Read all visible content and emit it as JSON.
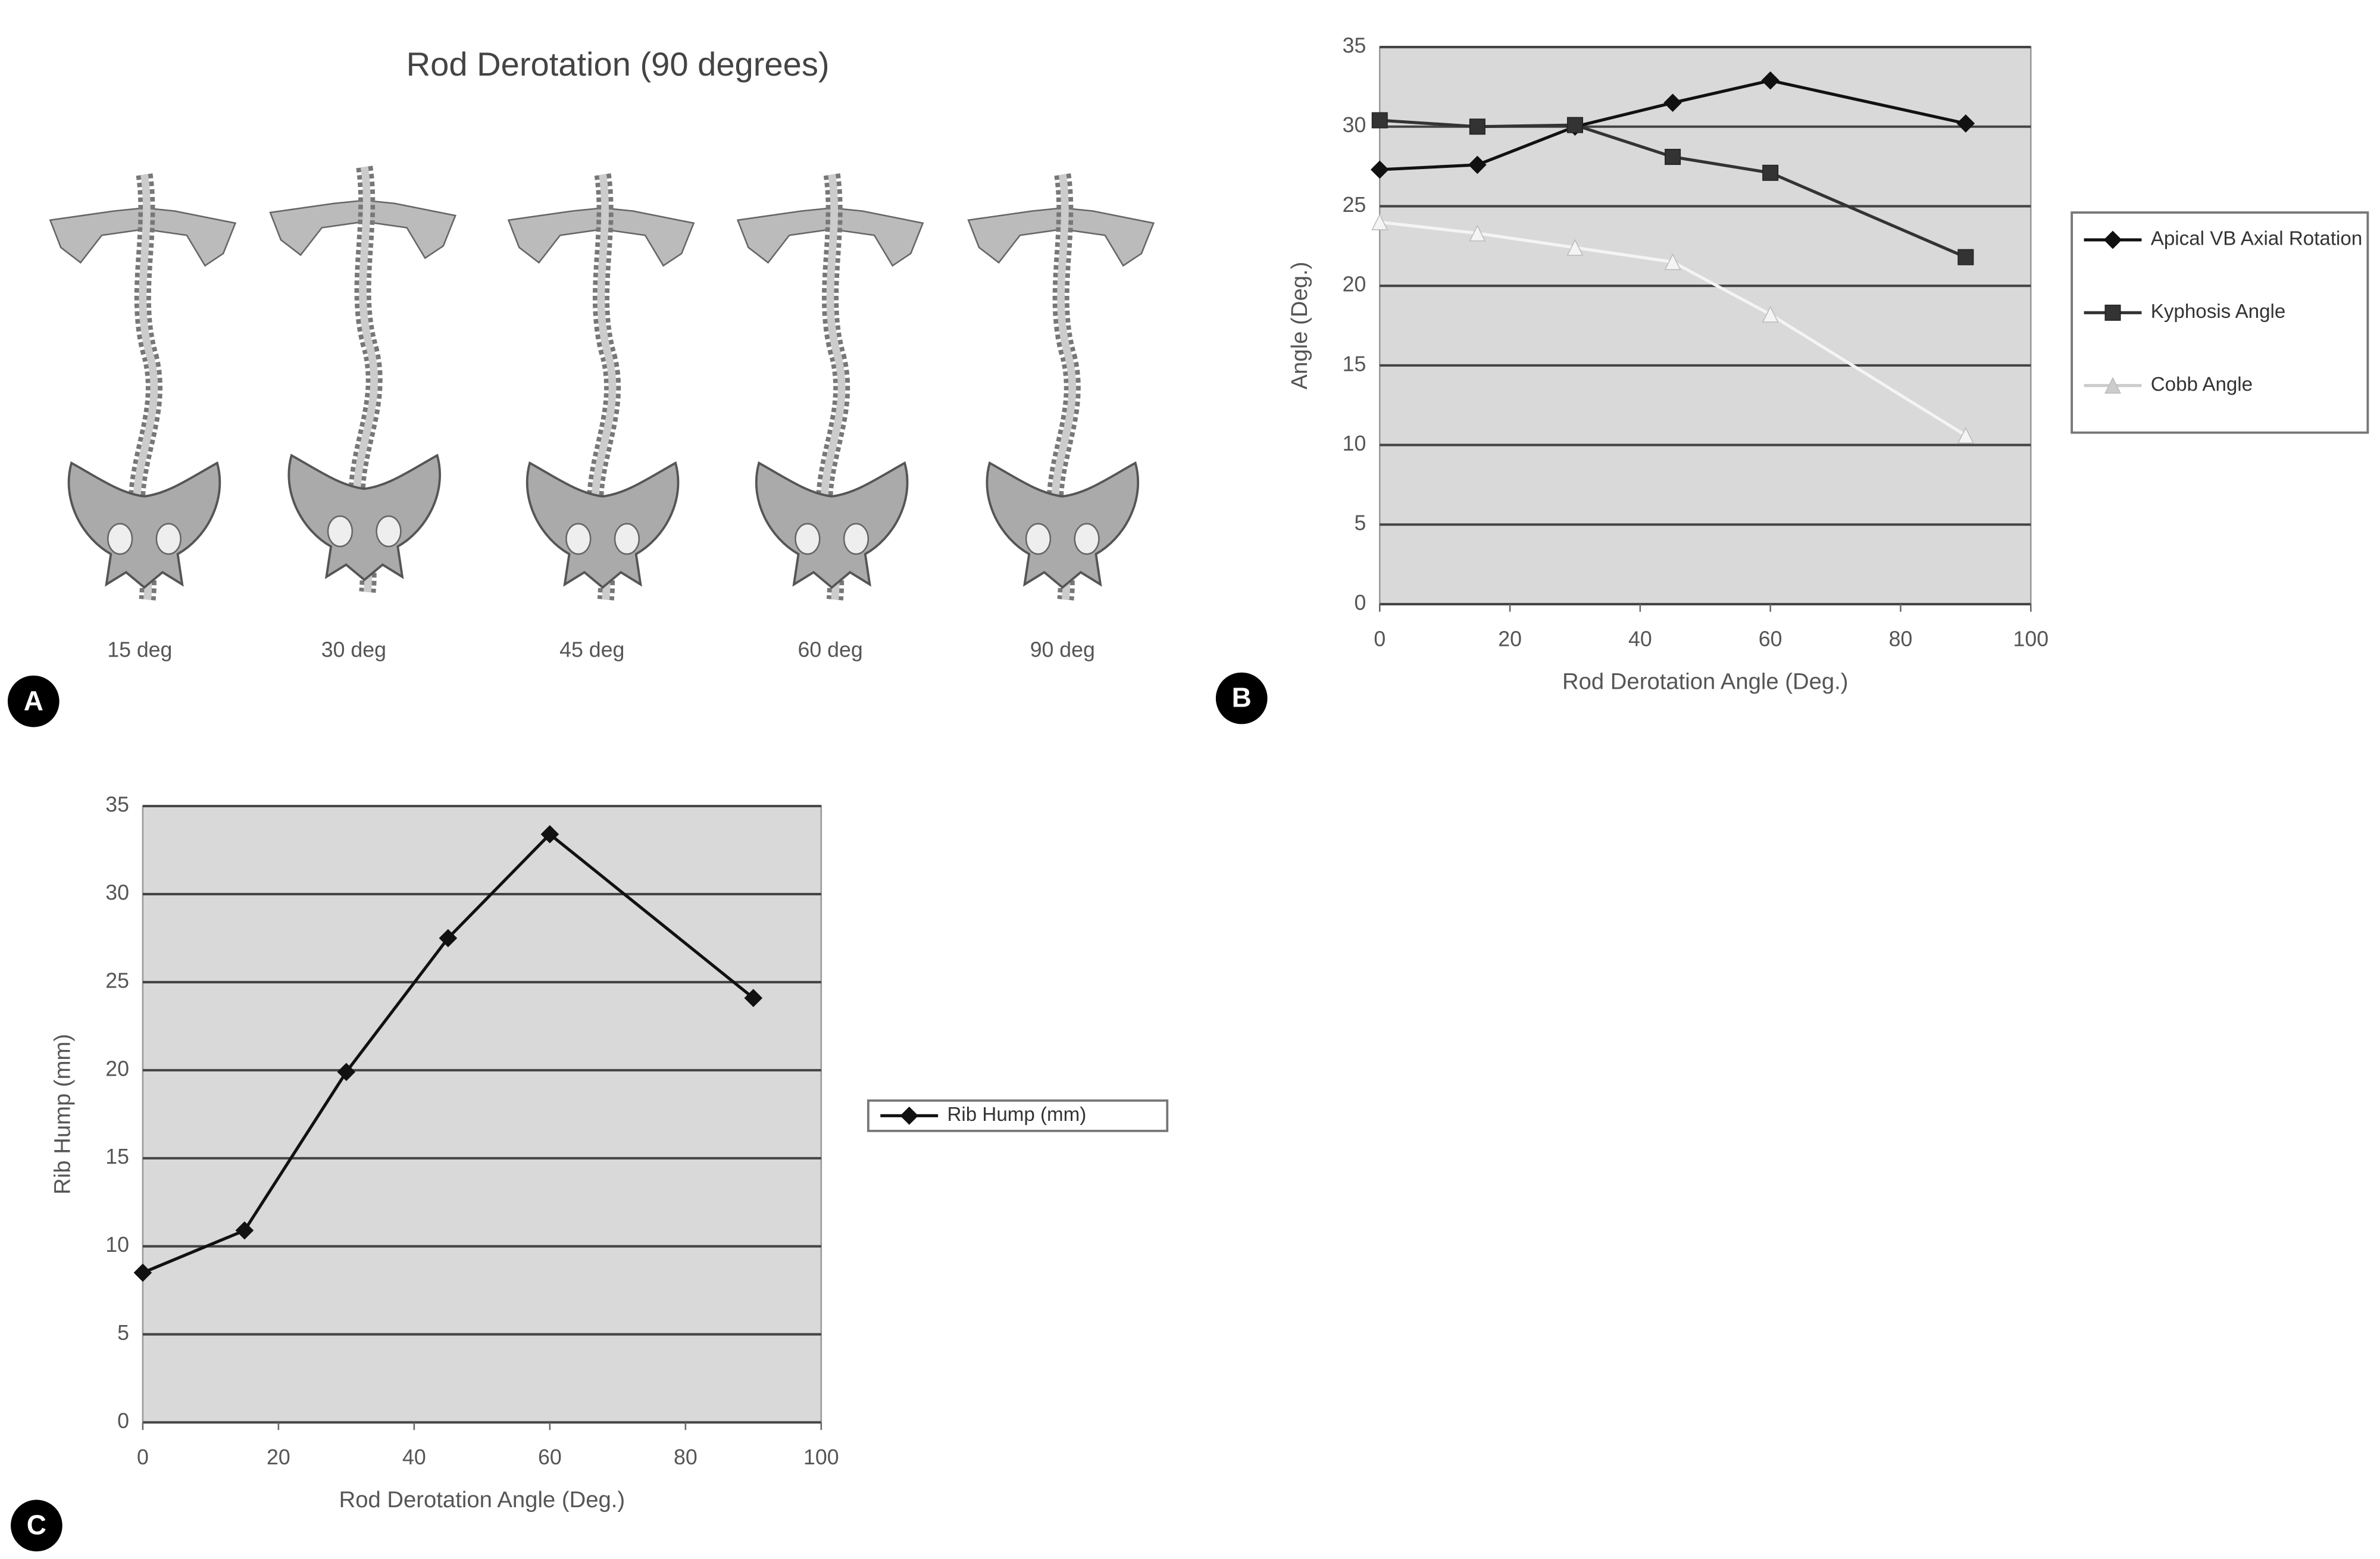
{
  "figure": {
    "panel_a": {
      "title": "Rod Derotation (90 degrees)",
      "labels": [
        "15 deg",
        "30 deg",
        "45 deg",
        "60 deg",
        "90 deg"
      ]
    },
    "panel_letters": [
      "A",
      "B",
      "C"
    ]
  },
  "chart_data": [
    {
      "type": "line",
      "x_label": "Rod Derotation Angle (Deg.)",
      "y_label": "Angle (Deg.)",
      "x": [
        0,
        15,
        30,
        45,
        60,
        90
      ],
      "series": [
        {
          "name": "Apical VB Axial Rotation",
          "color": "#111111",
          "marker": "diamond",
          "values": [
            27.3,
            27.6,
            30,
            31.5,
            32.9,
            30.2
          ]
        },
        {
          "name": "Kyphosis Angle",
          "color": "#333333",
          "marker": "square",
          "values": [
            30.4,
            30,
            30.1,
            28.1,
            27.1,
            21.8
          ]
        },
        {
          "name": "Cobb Angle",
          "color": "#f4f4f4",
          "marker": "triangle",
          "values": [
            24,
            23.3,
            22.4,
            21.5,
            18.2,
            10.6
          ]
        }
      ],
      "xlim": [
        0,
        100
      ],
      "xticks": [
        0,
        20,
        40,
        60,
        80,
        100
      ],
      "ylim": [
        0,
        35
      ],
      "yticks": [
        0,
        5,
        10,
        15,
        20,
        25,
        30,
        35
      ],
      "grid": true,
      "legend": "right"
    },
    {
      "type": "line",
      "x_label": "Rod Derotation Angle (Deg.)",
      "y_label": "Rib Hump (mm)",
      "x": [
        0,
        15,
        30,
        45,
        60,
        90
      ],
      "series": [
        {
          "name": "Rib Hump (mm)",
          "color": "#111111",
          "marker": "diamond",
          "values": [
            8.5,
            10.9,
            19.9,
            27.5,
            33.4,
            24.1
          ]
        }
      ],
      "xlim": [
        0,
        100
      ],
      "xticks": [
        0,
        20,
        40,
        60,
        80,
        100
      ],
      "ylim": [
        0,
        35
      ],
      "yticks": [
        0,
        5,
        10,
        15,
        20,
        25,
        30,
        35
      ],
      "grid": true,
      "legend": "right"
    }
  ]
}
